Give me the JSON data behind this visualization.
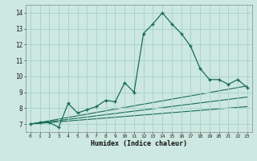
{
  "title": "",
  "xlabel": "Humidex (Indice chaleur)",
  "xlim": [
    -0.5,
    23.5
  ],
  "ylim": [
    6.5,
    14.5
  ],
  "yticks": [
    7,
    8,
    9,
    10,
    11,
    12,
    13,
    14
  ],
  "xticks": [
    0,
    1,
    2,
    3,
    4,
    5,
    6,
    7,
    8,
    9,
    10,
    11,
    12,
    13,
    14,
    15,
    16,
    17,
    18,
    19,
    20,
    21,
    22,
    23
  ],
  "bg_color": "#cce8e0",
  "grid_color": "#aad4cc",
  "line_color": "#1a6b5a",
  "main_x": [
    0,
    1,
    2,
    3,
    4,
    5,
    6,
    7,
    8,
    9,
    10,
    11,
    12,
    13,
    14,
    15,
    16,
    17,
    18,
    19,
    20,
    21,
    22,
    23
  ],
  "main_y": [
    7.0,
    7.1,
    7.1,
    6.8,
    8.3,
    7.7,
    7.9,
    8.1,
    8.5,
    8.4,
    9.6,
    9.0,
    12.7,
    13.3,
    14.0,
    13.3,
    12.7,
    11.9,
    10.5,
    9.8,
    9.8,
    9.5,
    9.8,
    9.3
  ],
  "trend1_x": [
    0,
    23
  ],
  "trend1_y": [
    7.0,
    9.4
  ],
  "trend2_x": [
    0,
    23
  ],
  "trend2_y": [
    7.0,
    8.7
  ],
  "trend3_x": [
    0,
    23
  ],
  "trend3_y": [
    7.0,
    8.1
  ]
}
